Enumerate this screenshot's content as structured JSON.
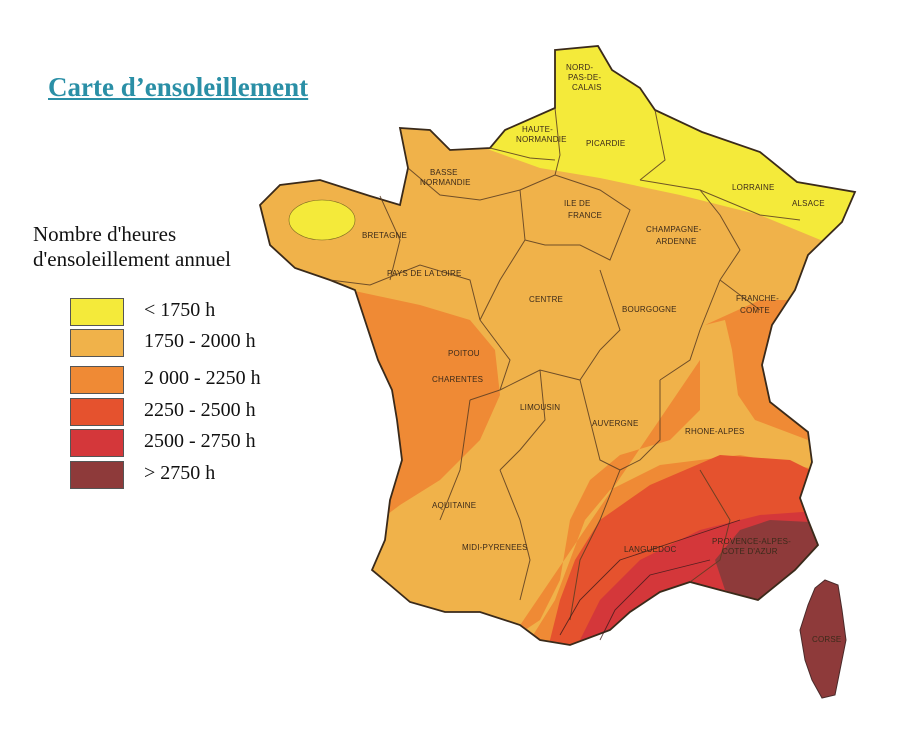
{
  "title": "Carte d’ensoleillement",
  "legend": {
    "title_line1": "Nombre d'heures",
    "title_line2": "d'ensoleillement annuel",
    "items": [
      {
        "label": "< 1750 h",
        "color": "#f4ea3a"
      },
      {
        "label": "1750 - 2000 h",
        "color": "#f0b24a"
      },
      {
        "label": "2 000 - 2250 h",
        "color": "#ef8a35"
      },
      {
        "label": "2250 - 2500 h",
        "color": "#e5522e"
      },
      {
        "label": "2500 - 2750 h",
        "color": "#d4373a"
      },
      {
        "label": "> 2750 h",
        "color": "#8e3a3a"
      }
    ]
  },
  "regions": {
    "nord": [
      "NORD-",
      "PAS-DE-",
      "CALAIS"
    ],
    "haute_normandie": [
      "HAUTE-",
      "NORMANDIE"
    ],
    "picardie": "PICARDIE",
    "basse_normandie": [
      "BASSE",
      "NORMANDIE"
    ],
    "ile_de_france": [
      "ILE DE",
      "FRANCE"
    ],
    "champagne": [
      "CHAMPAGNE-",
      "ARDENNE"
    ],
    "lorraine": "LORRAINE",
    "alsace": "ALSACE",
    "bretagne": "BRETAGNE",
    "pays_de_la_loire": "PAYS DE LA LOIRE",
    "centre": "CENTRE",
    "bourgogne": "BOURGOGNE",
    "franche_comte": [
      "FRANCHE-",
      "COMTE"
    ],
    "poitou": "POITOU",
    "charentes": "CHARENTES",
    "limousin": "LIMOUSIN",
    "auvergne": "AUVERGNE",
    "rhone_alpes": "RHONE-ALPES",
    "aquitaine": "AQUITAINE",
    "midi_pyrenees": "MIDI-PYRENEES",
    "languedoc": "LANGUEDOC",
    "paca": [
      "PROVENCE-ALPES-",
      "COTE D'AZUR"
    ],
    "corse": "CORSE"
  }
}
